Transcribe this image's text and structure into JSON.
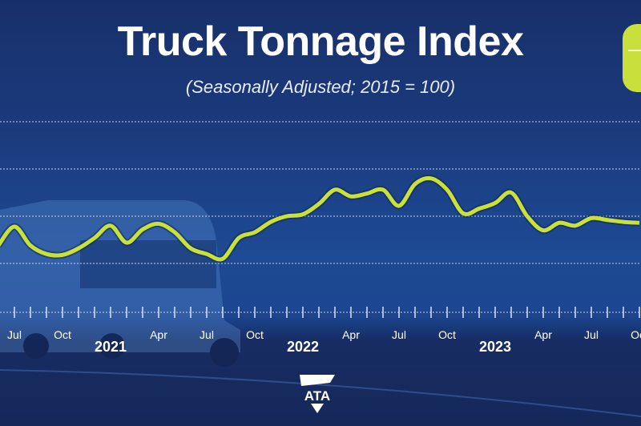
{
  "chart_data": {
    "type": "line",
    "title": "Truck Tonnage Index",
    "subtitle": "(Seasonally Adjusted; 2015 = 100)",
    "x": [
      "2020-06",
      "2020-07",
      "2020-08",
      "2020-09",
      "2020-10",
      "2020-11",
      "2020-12",
      "2021-01",
      "2021-02",
      "2021-03",
      "2021-04",
      "2021-05",
      "2021-06",
      "2021-07",
      "2021-08",
      "2021-09",
      "2021-10",
      "2021-11",
      "2021-12",
      "2022-01",
      "2022-02",
      "2022-03",
      "2022-04",
      "2022-05",
      "2022-06",
      "2022-07",
      "2022-08",
      "2022-09",
      "2022-10",
      "2022-11",
      "2022-12",
      "2023-01",
      "2023-02",
      "2023-03",
      "2023-04",
      "2023-05",
      "2023-06",
      "2023-07",
      "2023-08",
      "2023-09",
      "2023-10"
    ],
    "values": [
      106.9,
      108.9,
      106.9,
      106.0,
      105.9,
      106.6,
      107.7,
      109.0,
      107.2,
      108.6,
      109.2,
      108.3,
      106.6,
      106.0,
      105.5,
      107.7,
      108.3,
      109.4,
      110.0,
      110.2,
      111.3,
      112.8,
      112.1,
      112.4,
      112.8,
      111.1,
      113.4,
      114.0,
      112.8,
      110.3,
      110.8,
      111.4,
      112.5,
      110.0,
      108.5,
      109.3,
      109.0,
      109.8,
      109.6,
      109.4,
      109.3
    ],
    "ylim": [
      101,
      123
    ],
    "y_gridlines": [
      105,
      110,
      115,
      120
    ],
    "grid": true,
    "x_tick_labels": [
      {
        "month": "2020-07",
        "label": "Jul"
      },
      {
        "month": "2020-10",
        "label": "Oct"
      },
      {
        "month": "2021-04",
        "label": "Apr"
      },
      {
        "month": "2021-07",
        "label": "Jul"
      },
      {
        "month": "2021-10",
        "label": "Oct"
      },
      {
        "month": "2022-04",
        "label": "Apr"
      },
      {
        "month": "2022-07",
        "label": "Jul"
      },
      {
        "month": "2022-10",
        "label": "Oct"
      },
      {
        "month": "2023-04",
        "label": "Apr"
      },
      {
        "month": "2023-07",
        "label": "Jul"
      },
      {
        "month": "2023-10",
        "label": "Oct"
      }
    ],
    "year_labels": [
      {
        "month": "2021-01",
        "label": "2021"
      },
      {
        "month": "2022-01",
        "label": "2022"
      },
      {
        "month": "2023-01",
        "label": "2023"
      }
    ],
    "line_color": "#c8e23a",
    "background_color": "#1b3a7c"
  },
  "logo": {
    "text": "ATA"
  }
}
